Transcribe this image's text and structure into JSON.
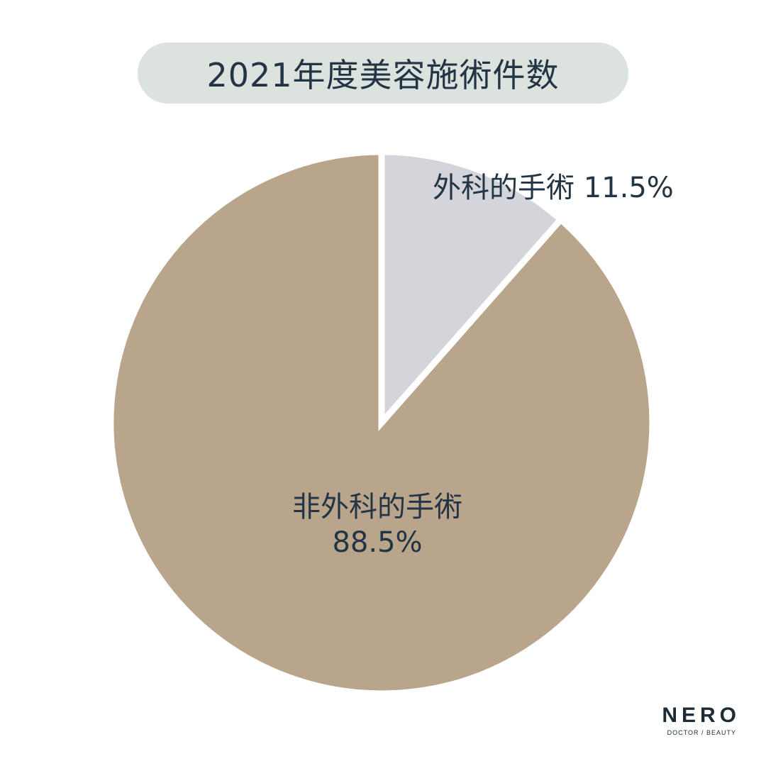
{
  "chart_data": {
    "type": "pie",
    "title": "2021年度美容施術件数",
    "slices": [
      {
        "label": "外科的手術",
        "value_label": "11.5%",
        "value": 11.5,
        "color": "#d4d5da"
      },
      {
        "label": "非外科的手術",
        "value_label": "88.5%",
        "value": 88.5,
        "color": "#b8a58c"
      }
    ],
    "start_angle": "12 o'clock",
    "direction": "clockwise",
    "separator_color": "#ffffff",
    "title_background": "#dce3df",
    "text_color": "#233544"
  },
  "logo": {
    "word": "NERO",
    "tagline": "DOCTOR / BEAUTY"
  }
}
